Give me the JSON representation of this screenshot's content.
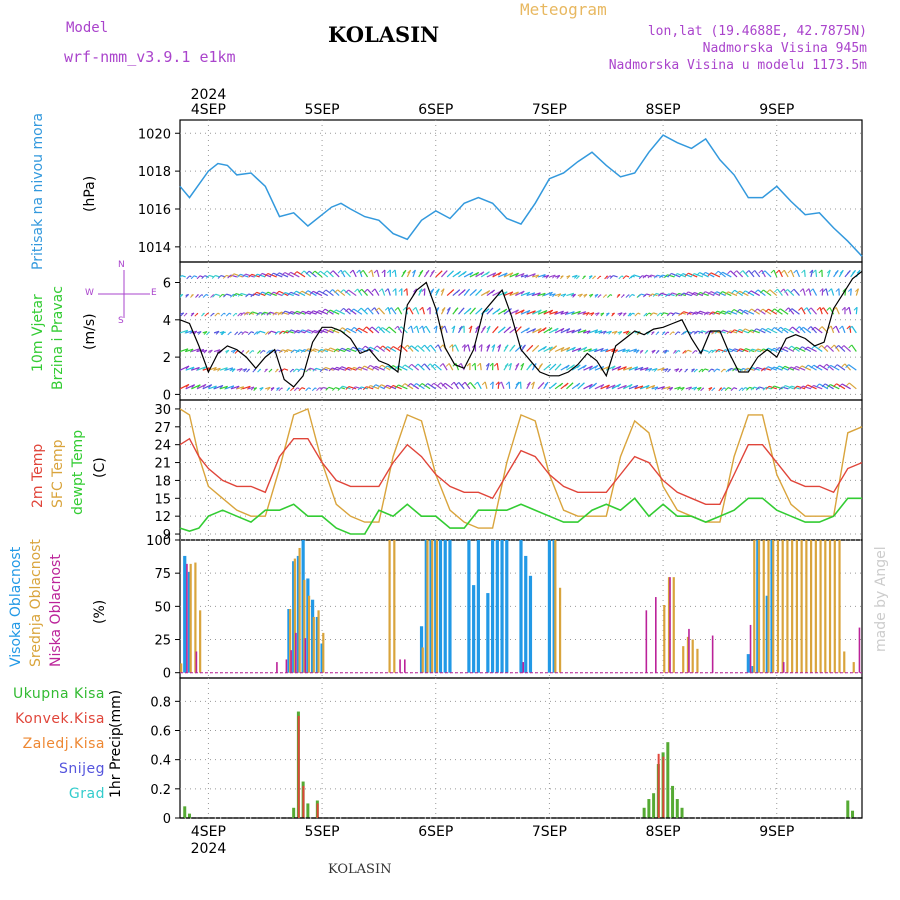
{
  "header": {
    "model_label": "Model",
    "model_name": "wrf-nmm_v3.9.1  e1km",
    "station": "KOLASIN",
    "product": "Meteogram",
    "lonlat": "lon,lat (19.4688E, 42.7875N)",
    "elevation": "Nadmorska Visina 945m",
    "model_elevation": "Nadmorska Visina u modelu 1173.5m",
    "credit": "made by Angel",
    "footer_station": "KOLASIN"
  },
  "colors": {
    "pressure": "#3399dd",
    "temp2m": "#e0453a",
    "sfc": "#d9a43c",
    "dewpt": "#33cc33",
    "cloud_high": "#2299e6",
    "cloud_mid": "#d9a43c",
    "cloud_low": "#bb2299",
    "precip_total": "#55aa33",
    "precip_conv": "#e0453a",
    "precip_frozen": "#ee8833",
    "snow": "#5555dd",
    "grad": "#33cccc"
  },
  "chart_data": [
    {
      "type": "line",
      "panel": "pressure",
      "ylabel": [
        "Pritisak na nivou mora",
        "(hPa)"
      ],
      "yticks": [
        1014,
        1016,
        1018,
        1020
      ],
      "ylim": [
        1013.2,
        1020.7
      ],
      "x_days": [
        "4SEP",
        "5SEP",
        "6SEP",
        "7SEP",
        "8SEP",
        "9SEP"
      ],
      "year": "2024",
      "xlim_hours": [
        -6,
        138
      ],
      "series": [
        {
          "name": "pressure",
          "x": [
            -6,
            -4,
            -2,
            0,
            2,
            4,
            6,
            9,
            12,
            15,
            18,
            21,
            24,
            26,
            28,
            30,
            33,
            36,
            39,
            42,
            45,
            48,
            51,
            54,
            57,
            60,
            63,
            66,
            69,
            72,
            75,
            78,
            81,
            84,
            87,
            90,
            93,
            96,
            99,
            102,
            105,
            108,
            111,
            114,
            117,
            120,
            123,
            126,
            129,
            132,
            135,
            138
          ],
          "y": [
            1017.2,
            1016.6,
            1017.3,
            1018.0,
            1018.4,
            1018.3,
            1017.8,
            1017.9,
            1017.2,
            1015.6,
            1015.8,
            1015.1,
            1015.7,
            1016.1,
            1016.3,
            1016.0,
            1015.6,
            1015.4,
            1014.7,
            1014.4,
            1015.4,
            1015.9,
            1015.5,
            1016.3,
            1016.6,
            1016.3,
            1015.5,
            1015.2,
            1016.3,
            1017.6,
            1017.9,
            1018.5,
            1019.0,
            1018.3,
            1017.7,
            1017.9,
            1019.0,
            1019.9,
            1019.5,
            1019.2,
            1019.7,
            1018.6,
            1017.8,
            1016.6,
            1016.6,
            1017.2,
            1016.4,
            1015.7,
            1015.8,
            1015.0,
            1014.3,
            1013.5
          ]
        }
      ]
    },
    {
      "type": "line",
      "panel": "wind",
      "ylabel": [
        "10m Vjetar",
        "Brzina i Pravac",
        "(m/s)"
      ],
      "compass": {
        "n": "N",
        "s": "S",
        "w": "W",
        "e": "E"
      },
      "yticks": [
        0,
        2,
        4,
        6
      ],
      "ylim": [
        -0.3,
        7.1
      ],
      "series": [
        {
          "name": "speed",
          "x": [
            -6,
            -4,
            -2,
            0,
            2,
            4,
            6,
            8,
            10,
            12,
            14,
            16,
            18,
            20,
            22,
            24,
            26,
            28,
            30,
            32,
            34,
            36,
            38,
            40,
            42,
            44,
            46,
            48,
            50,
            52,
            54,
            56,
            58,
            60,
            62,
            64,
            66,
            68,
            70,
            72,
            74,
            76,
            78,
            80,
            82,
            84,
            86,
            88,
            90,
            92,
            94,
            96,
            98,
            100,
            102,
            104,
            106,
            108,
            110,
            112,
            114,
            116,
            118,
            120,
            122,
            124,
            126,
            128,
            130,
            132,
            134,
            136,
            138
          ],
          "y": [
            4.0,
            3.8,
            2.6,
            1.2,
            2.2,
            2.6,
            2.4,
            2.0,
            1.4,
            2.0,
            2.4,
            0.8,
            0.4,
            1.0,
            2.8,
            3.6,
            3.6,
            3.4,
            3.0,
            2.2,
            2.4,
            1.8,
            1.6,
            1.2,
            4.8,
            5.6,
            6.0,
            4.6,
            2.5,
            1.6,
            1.4,
            2.4,
            4.4,
            5.0,
            5.6,
            4.2,
            2.4,
            1.8,
            1.2,
            1.0,
            1.0,
            1.2,
            1.6,
            2.2,
            1.8,
            1.0,
            2.6,
            3.0,
            3.4,
            3.2,
            3.5,
            3.6,
            3.8,
            4.0,
            3.0,
            2.2,
            3.4,
            3.4,
            2.2,
            1.2,
            1.2,
            2.0,
            2.4,
            2.0,
            3.0,
            3.2,
            3.0,
            2.6,
            2.8,
            4.6,
            5.4,
            6.2,
            6.6
          ]
        }
      ]
    },
    {
      "type": "line",
      "panel": "temperature",
      "ylabel": [
        "2m Temp",
        "SFC Temp",
        "dewpt Temp",
        "(C)"
      ],
      "yticks": [
        9,
        12,
        15,
        18,
        21,
        24,
        27,
        30
      ],
      "ylim": [
        8.0,
        31.5
      ],
      "series": [
        {
          "name": "2m Temp",
          "x": [
            -6,
            -4,
            -2,
            0,
            3,
            6,
            9,
            12,
            15,
            18,
            21,
            24,
            27,
            30,
            33,
            36,
            39,
            42,
            45,
            48,
            51,
            54,
            57,
            60,
            63,
            66,
            69,
            72,
            75,
            78,
            81,
            84,
            87,
            90,
            93,
            96,
            99,
            102,
            105,
            108,
            111,
            114,
            117,
            120,
            123,
            126,
            129,
            132,
            135,
            138
          ],
          "y": [
            24,
            25,
            22,
            20,
            18,
            17,
            17,
            16,
            22,
            25,
            25,
            21,
            18,
            17,
            17,
            17,
            21,
            24,
            22,
            19,
            17,
            16,
            16,
            15,
            19,
            23,
            22,
            19,
            17,
            16,
            16,
            16,
            19,
            22,
            21,
            18,
            16,
            15,
            14,
            14,
            19,
            24,
            24,
            21,
            18,
            17,
            17,
            16,
            20,
            21
          ]
        },
        {
          "name": "SFC Temp",
          "x": [
            -6,
            -4,
            -2,
            0,
            3,
            6,
            9,
            12,
            15,
            18,
            21,
            24,
            27,
            30,
            33,
            36,
            39,
            42,
            45,
            48,
            51,
            54,
            57,
            60,
            63,
            66,
            69,
            72,
            75,
            78,
            81,
            84,
            87,
            90,
            93,
            96,
            99,
            102,
            105,
            108,
            111,
            114,
            117,
            120,
            123,
            126,
            129,
            132,
            135,
            138
          ],
          "y": [
            30,
            29,
            22,
            17,
            15,
            13,
            12,
            12,
            20,
            29,
            30,
            21,
            14,
            12,
            11,
            11,
            22,
            29,
            28,
            19,
            13,
            11,
            10,
            10,
            21,
            29,
            28,
            19,
            13,
            12,
            12,
            12,
            22,
            28,
            26,
            17,
            13,
            12,
            11,
            11,
            22,
            29,
            29,
            19,
            14,
            12,
            12,
            12,
            26,
            27
          ]
        },
        {
          "name": "dewpt Temp",
          "x": [
            -6,
            -4,
            -2,
            0,
            3,
            6,
            9,
            12,
            15,
            18,
            21,
            24,
            27,
            30,
            33,
            36,
            39,
            42,
            45,
            48,
            51,
            54,
            57,
            60,
            63,
            66,
            69,
            72,
            75,
            78,
            81,
            84,
            87,
            90,
            93,
            96,
            99,
            102,
            105,
            108,
            111,
            114,
            117,
            120,
            123,
            126,
            129,
            132,
            135,
            138
          ],
          "y": [
            10,
            9.5,
            10,
            12,
            13,
            12,
            11,
            13,
            13,
            14,
            12,
            12,
            10,
            9,
            9,
            13,
            12,
            14,
            12,
            12,
            10,
            10,
            13,
            13,
            13,
            14,
            13,
            12,
            11,
            11,
            13,
            14,
            13,
            15,
            12,
            14,
            12,
            12,
            11,
            12,
            13,
            15,
            15,
            13,
            12,
            11,
            11,
            12,
            15,
            15
          ]
        }
      ]
    },
    {
      "type": "bar",
      "panel": "clouds",
      "ylabel": [
        "Visoka Oblacnost",
        "Srednja Oblacnost",
        "Niska Oblacnost",
        "(%)"
      ],
      "yticks": [
        0,
        25,
        50,
        75,
        100
      ],
      "ylim": [
        -4,
        100
      ],
      "series": [
        {
          "name": "Visoka Oblacnost",
          "x": [
            -5,
            -4,
            17,
            18,
            19,
            20,
            21,
            22,
            23,
            24,
            45,
            46,
            47,
            48,
            49,
            50,
            51,
            55,
            56,
            57,
            59,
            60,
            61,
            62,
            63,
            66,
            67,
            68,
            72,
            73,
            114,
            115,
            116,
            118,
            119
          ],
          "y": [
            88,
            76,
            48,
            84,
            88,
            100,
            71,
            55,
            42,
            22,
            35,
            100,
            100,
            100,
            100,
            100,
            100,
            100,
            66,
            100,
            60,
            100,
            100,
            100,
            100,
            100,
            88,
            73,
            100,
            100,
            14,
            5,
            100,
            58,
            100
          ]
        },
        {
          "name": "Srednja Oblacnost",
          "x": [
            -6,
            -4,
            -3,
            -2,
            17,
            18,
            19,
            20,
            21,
            22,
            23,
            24,
            38,
            39,
            45,
            46,
            47,
            48,
            73,
            74,
            96,
            97,
            98,
            100,
            101,
            102,
            103,
            115,
            116,
            117,
            118,
            119,
            120,
            121,
            122,
            123,
            124,
            125,
            126,
            127,
            128,
            129,
            130,
            131,
            132,
            133,
            134,
            136
          ],
          "y": [
            7,
            82,
            83,
            47,
            48,
            86,
            94,
            70,
            58,
            42,
            47,
            30,
            100,
            100,
            19,
            100,
            100,
            100,
            100,
            64,
            51,
            72,
            72,
            20,
            27,
            25,
            18,
            100,
            100,
            100,
            100,
            100,
            100,
            100,
            100,
            100,
            100,
            100,
            100,
            100,
            100,
            100,
            100,
            100,
            100,
            100,
            16,
            8
          ]
        },
        {
          "name": "Niska Oblacnost",
          "x": [
            -5,
            -3,
            14,
            16,
            17,
            18,
            20,
            40,
            41,
            66,
            92,
            94,
            97,
            101,
            106,
            114,
            121,
            137
          ],
          "y": [
            82,
            16,
            8,
            10,
            17,
            30,
            26,
            10,
            10,
            8,
            47,
            57,
            72,
            33,
            28,
            36,
            8,
            34
          ]
        }
      ]
    },
    {
      "type": "bar",
      "panel": "precip",
      "ylabel": [
        "1hr Precip",
        "(mm)"
      ],
      "legend": [
        "Ukupna Kisa",
        "Konvek.Kisa",
        "Zaledj.Kisa",
        "Snijeg",
        "Grad"
      ],
      "yticks": [
        0,
        0.2,
        0.4,
        0.6,
        0.8
      ],
      "ylim": [
        0,
        0.96
      ],
      "series": [
        {
          "name": "Ukupna Kisa",
          "x": [
            -5,
            -4,
            18,
            19,
            20,
            21,
            23,
            92,
            93,
            94,
            95,
            96,
            97,
            98,
            99,
            100,
            135,
            136
          ],
          "y": [
            0.08,
            0.03,
            0.07,
            0.73,
            0.25,
            0.1,
            0.12,
            0.07,
            0.13,
            0.17,
            0.37,
            0.45,
            0.52,
            0.22,
            0.13,
            0.07,
            0.12,
            0.05
          ]
        },
        {
          "name": "Konvek.Kisa",
          "x": [
            19,
            20,
            23,
            95,
            96
          ],
          "y": [
            0.7,
            0.22,
            0.1,
            0.44,
            0.42
          ]
        }
      ]
    }
  ]
}
